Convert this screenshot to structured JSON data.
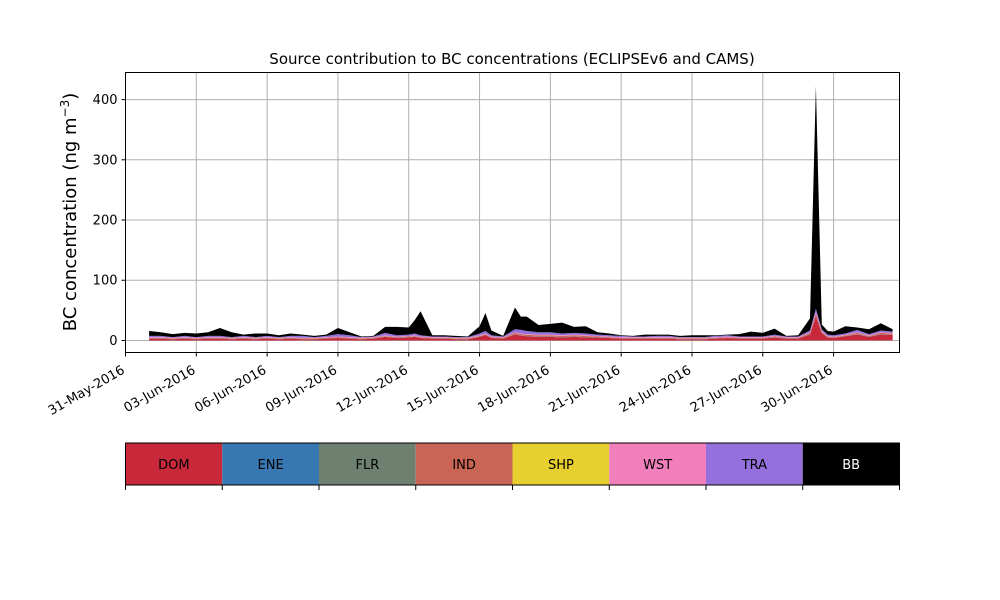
{
  "chart_data": {
    "type": "area",
    "title": "Source contribution to BC concentrations (ECLIPSEv6 and CAMS)",
    "ylabel": "BC concentration",
    "ylabel_unit": "(ng m",
    "ylabel_unit_sup": "−3",
    "ylabel_unit_close": ")",
    "xlabel": "",
    "grid": true,
    "xlim": [
      "2016-05-31",
      "2016-07-02T19:00"
    ],
    "ylim": [
      -20,
      445
    ],
    "y_ticks": [
      0,
      100,
      200,
      300,
      400
    ],
    "x_tick_dates": [
      "2016-05-31",
      "2016-06-03",
      "2016-06-06",
      "2016-06-09",
      "2016-06-12",
      "2016-06-15",
      "2016-06-18",
      "2016-06-21",
      "2016-06-24",
      "2016-06-27",
      "2016-06-30"
    ],
    "x_tick_labels": [
      "31-May-2016",
      "03-Jun-2016",
      "06-Jun-2016",
      "09-Jun-2016",
      "12-Jun-2016",
      "15-Jun-2016",
      "18-Jun-2016",
      "21-Jun-2016",
      "24-Jun-2016",
      "27-Jun-2016",
      "30-Jun-2016"
    ],
    "legend_position": "bottom",
    "legend": [
      {
        "name": "DOM",
        "color": "#c8293a",
        "text_color": "#000000"
      },
      {
        "name": "ENE",
        "color": "#3878b2",
        "text_color": "#000000"
      },
      {
        "name": "FLR",
        "color": "#6e8070",
        "text_color": "#000000"
      },
      {
        "name": "IND",
        "color": "#c96555",
        "text_color": "#000000"
      },
      {
        "name": "SHP",
        "color": "#e6cf2f",
        "text_color": "#000000"
      },
      {
        "name": "WST",
        "color": "#f07fbb",
        "text_color": "#000000"
      },
      {
        "name": "TRA",
        "color": "#9370db",
        "text_color": "#000000"
      },
      {
        "name": "BB",
        "color": "#000000",
        "text_color": "#ffffff"
      }
    ],
    "stack_order": [
      "DOM",
      "ENE",
      "FLR",
      "IND",
      "SHP",
      "WST",
      "TRA",
      "BB"
    ],
    "x": [
      "2016-06-01T00:00",
      "2016-06-01T12:00",
      "2016-06-02T00:00",
      "2016-06-02T12:00",
      "2016-06-03T00:00",
      "2016-06-03T12:00",
      "2016-06-04T00:00",
      "2016-06-04T12:00",
      "2016-06-05T00:00",
      "2016-06-05T12:00",
      "2016-06-06T00:00",
      "2016-06-06T12:00",
      "2016-06-07T00:00",
      "2016-06-07T12:00",
      "2016-06-08T00:00",
      "2016-06-08T12:00",
      "2016-06-09T00:00",
      "2016-06-09T12:00",
      "2016-06-10T00:00",
      "2016-06-10T12:00",
      "2016-06-11T00:00",
      "2016-06-11T12:00",
      "2016-06-12T00:00",
      "2016-06-12T06:00",
      "2016-06-12T12:00",
      "2016-06-13T00:00",
      "2016-06-13T12:00",
      "2016-06-14T00:00",
      "2016-06-14T12:00",
      "2016-06-15T00:00",
      "2016-06-15T06:00",
      "2016-06-15T12:00",
      "2016-06-16T00:00",
      "2016-06-16T12:00",
      "2016-06-16T18:00",
      "2016-06-17T00:00",
      "2016-06-17T12:00",
      "2016-06-18T00:00",
      "2016-06-18T12:00",
      "2016-06-19T00:00",
      "2016-06-19T12:00",
      "2016-06-20T00:00",
      "2016-06-20T12:00",
      "2016-06-21T00:00",
      "2016-06-21T12:00",
      "2016-06-22T00:00",
      "2016-06-22T12:00",
      "2016-06-23T00:00",
      "2016-06-23T12:00",
      "2016-06-24T00:00",
      "2016-06-24T12:00",
      "2016-06-25T00:00",
      "2016-06-25T12:00",
      "2016-06-26T00:00",
      "2016-06-26T12:00",
      "2016-06-27T00:00",
      "2016-06-27T12:00",
      "2016-06-28T00:00",
      "2016-06-28T12:00",
      "2016-06-29T00:00",
      "2016-06-29T06:00",
      "2016-06-29T12:00",
      "2016-06-29T18:00",
      "2016-06-30T00:00",
      "2016-06-30T12:00",
      "2016-07-01T00:00",
      "2016-07-01T12:00",
      "2016-07-02T00:00",
      "2016-07-02T12:00"
    ],
    "series": [
      {
        "name": "DOM",
        "values": [
          3,
          3,
          2,
          3,
          2,
          3,
          3,
          2,
          3,
          2,
          3,
          2,
          3,
          2,
          2,
          3,
          4,
          3,
          2,
          3,
          6,
          4,
          5,
          6,
          4,
          3,
          3,
          2,
          2,
          6,
          9,
          4,
          3,
          10,
          8,
          7,
          6,
          6,
          5,
          6,
          5,
          5,
          4,
          3,
          3,
          3,
          3,
          3,
          2,
          2,
          2,
          3,
          4,
          3,
          3,
          3,
          5,
          3,
          3,
          10,
          40,
          12,
          5,
          4,
          7,
          10,
          6,
          10,
          9
        ]
      },
      {
        "name": "ENE",
        "values": [
          0.3,
          0.3,
          0.3,
          0.3,
          0.3,
          0.3,
          0.3,
          0.3,
          0.3,
          0.3,
          0.3,
          0.3,
          0.3,
          0.3,
          0.3,
          0.3,
          0.3,
          0.3,
          0.3,
          0.3,
          0.3,
          0.3,
          0.3,
          0.3,
          0.3,
          0.3,
          0.3,
          0.3,
          0.3,
          0.3,
          0.3,
          0.3,
          0.3,
          0.3,
          0.3,
          0.3,
          0.3,
          0.3,
          0.3,
          0.3,
          0.3,
          0.3,
          0.3,
          0.3,
          0.3,
          0.3,
          0.3,
          0.3,
          0.3,
          0.3,
          0.3,
          0.3,
          0.3,
          0.3,
          0.3,
          0.3,
          0.3,
          0.3,
          0.3,
          0.3,
          0.3,
          0.3,
          0.3,
          0.3,
          0.3,
          0.3,
          0.3,
          0.3,
          0.3
        ]
      },
      {
        "name": "FLR",
        "values": [
          0.2,
          0.2,
          0.2,
          0.2,
          0.2,
          0.2,
          0.2,
          0.2,
          0.2,
          0.2,
          0.2,
          0.2,
          0.2,
          0.2,
          0.2,
          0.2,
          0.2,
          0.2,
          0.2,
          0.2,
          0.2,
          0.2,
          0.2,
          0.2,
          0.2,
          0.2,
          0.2,
          0.2,
          0.2,
          0.2,
          0.2,
          0.2,
          0.2,
          0.2,
          0.2,
          0.2,
          0.2,
          0.2,
          0.2,
          0.2,
          0.2,
          0.2,
          0.2,
          0.2,
          0.2,
          0.2,
          0.2,
          0.2,
          0.2,
          0.2,
          0.2,
          0.2,
          0.2,
          0.2,
          0.2,
          0.2,
          0.2,
          0.2,
          0.2,
          0.2,
          0.2,
          0.2,
          0.2,
          0.2,
          0.2,
          0.2,
          0.2,
          0.2,
          0.2
        ]
      },
      {
        "name": "IND",
        "values": [
          1,
          1,
          1,
          1,
          1,
          1,
          1,
          1,
          1,
          1,
          1,
          1,
          1,
          1,
          1,
          1,
          1,
          1,
          1,
          1,
          1,
          1,
          1,
          1,
          1,
          1,
          1,
          1,
          1,
          1,
          1,
          1,
          1,
          2,
          2,
          2,
          2,
          2,
          2,
          2,
          2,
          1,
          1,
          1,
          1,
          1,
          1,
          1,
          1,
          1,
          1,
          1,
          1,
          1,
          1,
          1,
          1,
          1,
          1,
          2,
          4,
          2,
          1,
          1,
          1,
          2,
          1,
          2,
          2
        ]
      },
      {
        "name": "SHP",
        "values": [
          0.1,
          0.1,
          0.1,
          0.1,
          0.1,
          0.1,
          0.1,
          0.1,
          0.1,
          0.1,
          0.1,
          0.1,
          0.1,
          0.1,
          0.1,
          0.1,
          0.1,
          0.1,
          0.1,
          0.1,
          0.1,
          0.1,
          0.1,
          0.1,
          0.1,
          0.1,
          0.1,
          0.1,
          0.1,
          0.1,
          0.1,
          0.1,
          0.1,
          0.1,
          0.1,
          0.1,
          0.1,
          0.1,
          0.1,
          0.1,
          0.1,
          0.1,
          0.1,
          0.1,
          0.1,
          0.1,
          0.1,
          0.1,
          0.1,
          0.1,
          0.1,
          0.1,
          0.1,
          0.1,
          0.1,
          0.1,
          0.1,
          0.1,
          0.1,
          0.1,
          0.1,
          0.1,
          0.1,
          0.1,
          0.1,
          0.1,
          0.1,
          0.1,
          0.1
        ]
      },
      {
        "name": "WST",
        "values": [
          1,
          1,
          1,
          1,
          1,
          1,
          1,
          1,
          1,
          1,
          1,
          1,
          1,
          1,
          1,
          1,
          1,
          1,
          1,
          1,
          1,
          1,
          1,
          1,
          1,
          1,
          1,
          1,
          1,
          1,
          1,
          1,
          1,
          1,
          1,
          1,
          1,
          1,
          1,
          1,
          1,
          1,
          1,
          1,
          1,
          1,
          1,
          1,
          1,
          1,
          1,
          1,
          1,
          1,
          1,
          1,
          1,
          1,
          1,
          1,
          2,
          1,
          1,
          1,
          1,
          1,
          1,
          1,
          1
        ]
      },
      {
        "name": "TRA",
        "values": [
          2,
          2,
          1,
          2,
          1,
          2,
          2,
          1,
          2,
          1,
          2,
          1,
          2,
          3,
          1,
          2,
          4,
          3,
          1,
          1,
          4,
          2,
          2,
          3,
          2,
          1,
          1,
          1,
          1,
          3,
          4,
          2,
          1,
          5,
          6,
          5,
          4,
          4,
          3,
          3,
          3,
          2,
          2,
          2,
          1,
          1,
          2,
          2,
          1,
          1,
          1,
          2,
          2,
          1,
          1,
          1,
          2,
          1,
          1,
          3,
          6,
          3,
          2,
          2,
          2,
          4,
          2,
          3,
          2
        ]
      },
      {
        "name": "BB",
        "values": [
          8,
          6,
          5,
          5,
          6,
          6,
          13,
          8,
          2,
          6,
          4,
          3,
          4,
          2,
          2,
          2,
          10,
          5,
          1,
          1,
          10,
          14,
          12,
          22,
          40,
          2,
          2,
          2,
          1,
          12,
          30,
          8,
          1,
          36,
          22,
          24,
          12,
          14,
          18,
          10,
          12,
          4,
          3,
          1,
          1,
          3,
          2,
          2,
          2,
          3,
          3,
          1,
          1,
          4,
          8,
          6,
          10,
          1,
          2,
          20,
          370,
          8,
          6,
          6,
          12,
          4,
          8,
          12,
          4
        ]
      }
    ]
  }
}
